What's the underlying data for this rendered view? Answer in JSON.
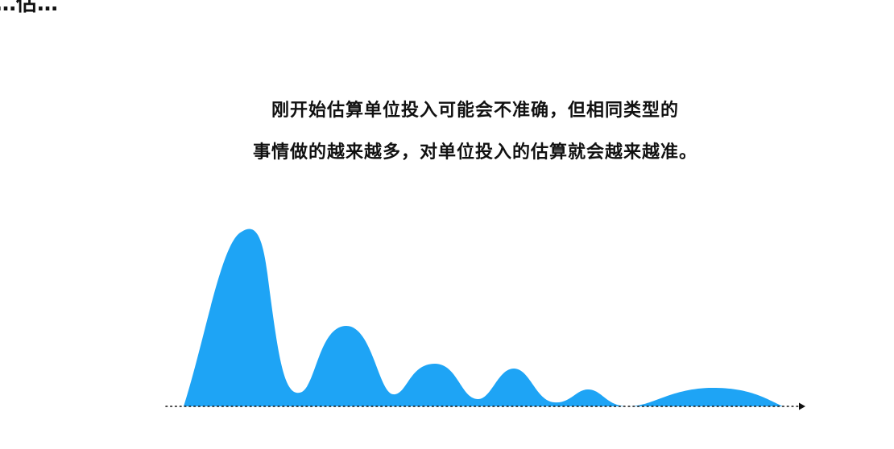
{
  "corner_fragment": "…估…",
  "caption": {
    "line1": "刚开始估算单位投入可能会不准确，但相同类型的",
    "line2": "事情做的越来越多，对单位投入的估算就会越来越准。"
  },
  "diagram": {
    "fill_color": "#1ea4f5",
    "axis_color": "#111111",
    "axis_style": "dotted",
    "axis_arrow": "right",
    "peaks": [
      1.0,
      0.45,
      0.24,
      0.21,
      0.09,
      0.1
    ]
  }
}
